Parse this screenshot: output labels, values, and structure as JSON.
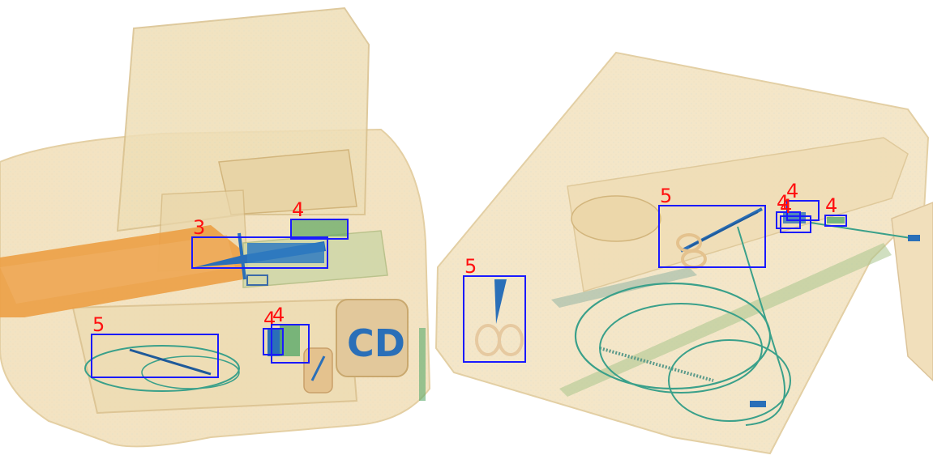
{
  "image": {
    "kind": "x-ray baggage scan",
    "background": "#ffffff",
    "box_color": "#1a1aff",
    "label_color": "#ff1010"
  },
  "detections": [
    {
      "label": "3"
    },
    {
      "label": "4"
    },
    {
      "label": "5"
    },
    {
      "label": "4"
    },
    {
      "label": "4"
    },
    {
      "label": "5"
    },
    {
      "label": "5"
    },
    {
      "label": "4"
    },
    {
      "label": "4"
    },
    {
      "label": "4"
    },
    {
      "label": "4"
    }
  ]
}
